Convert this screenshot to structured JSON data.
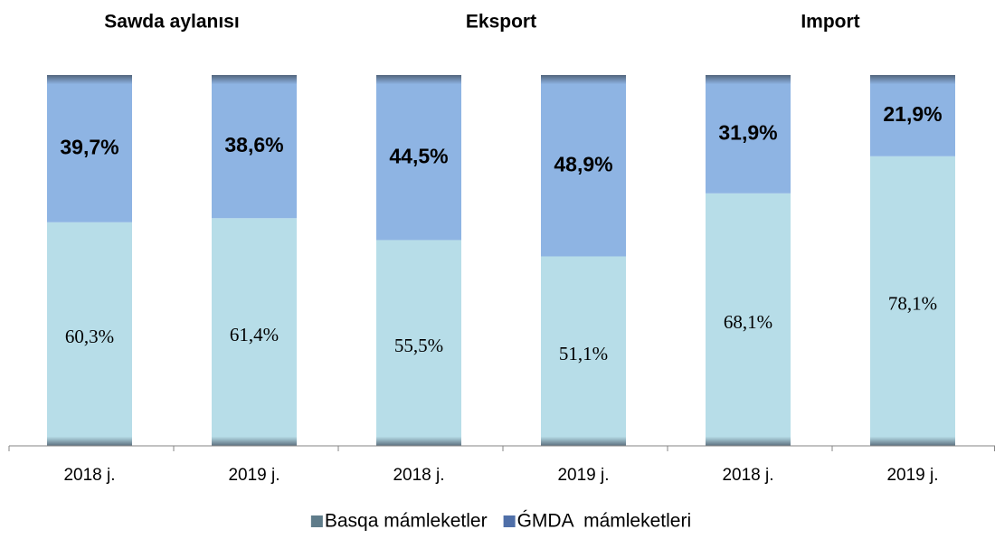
{
  "chart_data": {
    "type": "stacked-bar",
    "groups": [
      "Sawda aylanısı",
      "Eksport",
      "Import"
    ],
    "categories": [
      "2018 j.",
      "2019 j.",
      "2018 j.",
      "2019 j.",
      "2018 j.",
      "2019 j."
    ],
    "series": [
      {
        "name": "Basqa mámleketler",
        "color": "#b7dde8",
        "values": [
          60.3,
          61.4,
          55.5,
          51.1,
          68.1,
          78.1
        ],
        "value_labels": [
          "60,3%",
          "61,4%",
          "55,5%",
          "51,1%",
          "68,1%",
          "78,1%"
        ]
      },
      {
        "name": "ǴMDA  mámleketleri",
        "color": "#8eb4e3",
        "values": [
          39.7,
          38.6,
          44.5,
          48.9,
          31.9,
          21.9
        ],
        "value_labels": [
          "39,7%",
          "38,6%",
          "44,5%",
          "48,9%",
          "31,9%",
          "21,9%"
        ]
      }
    ],
    "legend": "bottom"
  }
}
